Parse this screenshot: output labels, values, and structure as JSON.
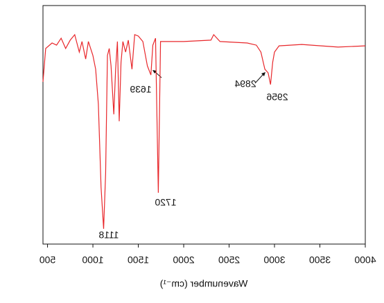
{
  "chart_data": {
    "type": "line",
    "x_label": "Wavenumber (cm⁻¹)",
    "x": [
      450,
      480,
      550,
      600,
      650,
      700,
      750,
      800,
      850,
      880,
      920,
      950,
      1000,
      1030,
      1060,
      1090,
      1118,
      1140,
      1160,
      1180,
      1200,
      1230,
      1250,
      1270,
      1290,
      1310,
      1330,
      1360,
      1390,
      1430,
      1460,
      1500,
      1550,
      1600,
      1639,
      1660,
      1690,
      1720,
      1745,
      1780,
      2000,
      2300,
      2330,
      2400,
      2700,
      2800,
      2850,
      2894,
      2930,
      2956,
      2980,
      3000,
      3050,
      3300,
      3700,
      4000
    ],
    "series": [
      {
        "color": "#e8262a",
        "values": [
          68.0,
          82.0,
          84.3,
          83.4,
          86.3,
          82.0,
          85.5,
          87.8,
          80.5,
          84.9,
          77.6,
          84.9,
          79.1,
          73.3,
          58.7,
          23.8,
          6.4,
          29.7,
          79.1,
          82.0,
          74.7,
          54.4,
          73.3,
          84.9,
          51.5,
          76.2,
          84.9,
          80.5,
          85.5,
          73.3,
          87.8,
          87.2,
          84.9,
          74.7,
          70.9,
          83.4,
          86.3,
          21.5,
          84.9,
          84.9,
          84.9,
          85.5,
          87.8,
          84.9,
          84.3,
          83.4,
          80.5,
          73.3,
          71.8,
          66.9,
          76.2,
          80.5,
          83.1,
          83.7,
          82.6,
          83.1
        ]
      }
    ],
    "xlim": [
      450,
      4000
    ],
    "ylim": [
      0,
      100
    ],
    "xticks": [
      500,
      1000,
      1500,
      2000,
      2500,
      3000,
      3500,
      4000
    ],
    "annotations": [
      "1118",
      "1720",
      "1639",
      "2894",
      "2956"
    ]
  }
}
